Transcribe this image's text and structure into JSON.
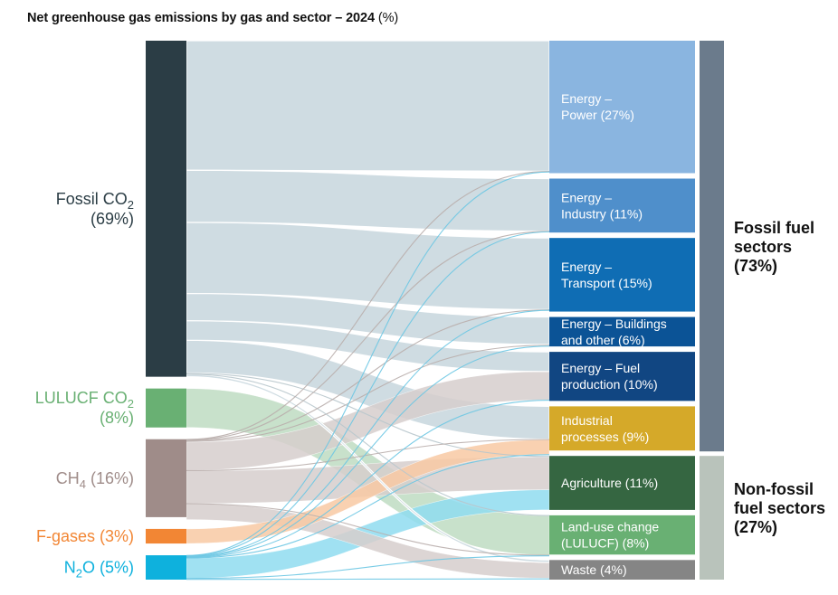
{
  "chart_data": {
    "type": "sankey",
    "title": "Net greenhouse gas emissions by gas and sector – 2024",
    "title_unit": "(%)",
    "sources": [
      {
        "id": "fossil_co2",
        "label_main": "Fossil CO",
        "label_sub": "2",
        "label_line2": "(69%)",
        "value": 69,
        "color": "#2b3d45",
        "link_color": "#cfdce2",
        "label_color": "#2b3d45"
      },
      {
        "id": "lulucf_co2",
        "label_main": "LULUCF CO",
        "label_sub": "2",
        "label_line2": "(8%)",
        "value": 8,
        "color": "#69b073",
        "link_color": "#bedcc2",
        "label_color": "#69b073"
      },
      {
        "id": "ch4",
        "label_main": "CH",
        "label_sub": "4",
        "label_after": " (16%)",
        "value": 16,
        "color": "#9f8c89",
        "link_color": "#d6cecd",
        "label_color": "#9f8c89"
      },
      {
        "id": "fgases",
        "label_main": "F-gases (3%)",
        "value": 3,
        "color": "#f28634",
        "link_color": "#f8c9a3",
        "label_color": "#f28634"
      },
      {
        "id": "n2o",
        "label_main": "N",
        "label_sub": "2",
        "label_after": "O (5%)",
        "value": 5,
        "color": "#0eb1dd",
        "link_color": "#8fdcf0",
        "label_color": "#0eb1dd"
      }
    ],
    "targets": [
      {
        "id": "power",
        "lines": [
          "Energy –",
          "Power (27%)"
        ],
        "value": 27,
        "color": "#8ab5e0",
        "group": "fossil"
      },
      {
        "id": "industry",
        "lines": [
          "Energy –",
          "Industry (11%)"
        ],
        "value": 11,
        "color": "#4f8fcb",
        "group": "fossil"
      },
      {
        "id": "transport",
        "lines": [
          "Energy –",
          "Transport (15%)"
        ],
        "value": 15,
        "color": "#0f6db4",
        "group": "fossil"
      },
      {
        "id": "buildings",
        "lines": [
          "Energy – Buildings",
          "and other (6%)"
        ],
        "value": 6,
        "color": "#0b5396",
        "group": "fossil"
      },
      {
        "id": "fuelprod",
        "lines": [
          "Energy – Fuel",
          "production (10%)"
        ],
        "value": 10,
        "color": "#114682",
        "group": "fossil"
      },
      {
        "id": "indproc",
        "lines": [
          "Industrial",
          "processes (9%)"
        ],
        "value": 9,
        "color": "#d5a929",
        "group": "fossil"
      },
      {
        "id": "agriculture",
        "lines": [
          "Agriculture (11%)"
        ],
        "value": 11,
        "color": "#356641",
        "group": "nonfossil"
      },
      {
        "id": "luc",
        "lines": [
          "Land-use change",
          "(LULUCF) (8%)"
        ],
        "value": 8,
        "color": "#69b073",
        "group": "nonfossil"
      },
      {
        "id": "waste",
        "lines": [
          "Waste (4%)"
        ],
        "value": 4,
        "color": "#858585",
        "group": "nonfossil"
      }
    ],
    "groups": [
      {
        "id": "fossil",
        "lines": [
          "Fossil fuel",
          "sectors",
          "(73%)"
        ],
        "value": 73,
        "color": "#6b7b8c"
      },
      {
        "id": "nonfossil",
        "lines": [
          "Non-fossil",
          "fuel sectors",
          "(27%)"
        ],
        "value": 27,
        "color": "#b9c3bb"
      }
    ],
    "links": [
      {
        "source": "fossil_co2",
        "target": "power",
        "value": 26.6
      },
      {
        "source": "fossil_co2",
        "target": "industry",
        "value": 10.7
      },
      {
        "source": "fossil_co2",
        "target": "transport",
        "value": 14.6
      },
      {
        "source": "fossil_co2",
        "target": "buildings",
        "value": 5.6
      },
      {
        "source": "fossil_co2",
        "target": "fuelprod",
        "value": 4.0
      },
      {
        "source": "fossil_co2",
        "target": "indproc",
        "value": 6.7
      },
      {
        "source": "fossil_co2",
        "target": "agriculture",
        "value": 0.2
      },
      {
        "source": "fossil_co2",
        "target": "luc",
        "value": 0.1
      },
      {
        "source": "fossil_co2",
        "target": "waste",
        "value": 0.5
      },
      {
        "source": "lulucf_co2",
        "target": "luc",
        "value": 8.0
      },
      {
        "source": "ch4",
        "target": "power",
        "value": 0.1
      },
      {
        "source": "ch4",
        "target": "industry",
        "value": 0.1
      },
      {
        "source": "ch4",
        "target": "transport",
        "value": 0.1
      },
      {
        "source": "ch4",
        "target": "buildings",
        "value": 0.3
      },
      {
        "source": "ch4",
        "target": "fuelprod",
        "value": 5.8
      },
      {
        "source": "ch4",
        "target": "indproc",
        "value": 0.1
      },
      {
        "source": "ch4",
        "target": "agriculture",
        "value": 6.7
      },
      {
        "source": "ch4",
        "target": "luc",
        "value": 0.1
      },
      {
        "source": "ch4",
        "target": "waste",
        "value": 3.2
      },
      {
        "source": "fgases",
        "target": "indproc",
        "value": 3.0
      },
      {
        "source": "n2o",
        "target": "power",
        "value": 0.1
      },
      {
        "source": "n2o",
        "target": "industry",
        "value": 0.1
      },
      {
        "source": "n2o",
        "target": "transport",
        "value": 0.1
      },
      {
        "source": "n2o",
        "target": "buildings",
        "value": 0.1
      },
      {
        "source": "n2o",
        "target": "fuelprod",
        "value": 0.1
      },
      {
        "source": "n2o",
        "target": "indproc",
        "value": 0.1
      },
      {
        "source": "n2o",
        "target": "agriculture",
        "value": 4.1
      },
      {
        "source": "n2o",
        "target": "luc",
        "value": 0.1
      },
      {
        "source": "n2o",
        "target": "waste",
        "value": 0.3
      }
    ]
  }
}
